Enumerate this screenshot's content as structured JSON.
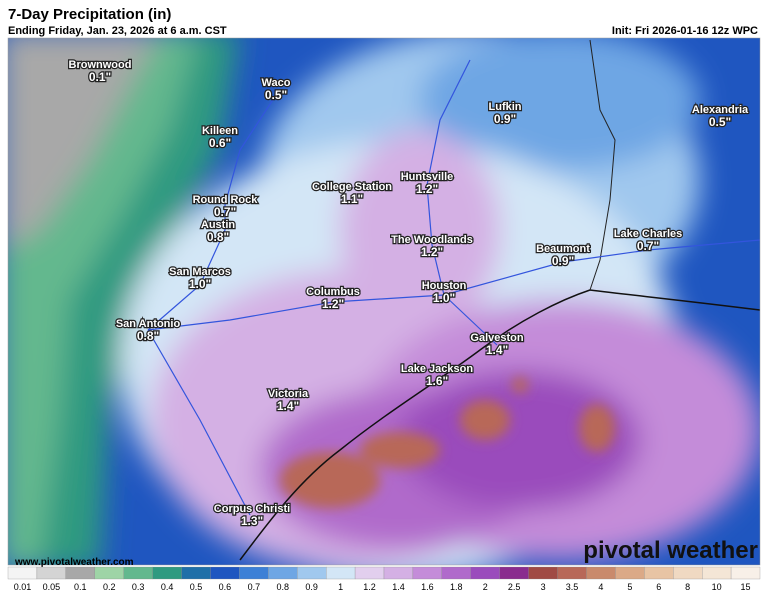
{
  "header": {
    "title": "7-Day Precipitation (in)",
    "subtitle": "Ending Friday, Jan. 23, 2026 at 6 a.m. CST",
    "init": "Init: Fri 2026-01-16 12z WPC"
  },
  "cities": [
    {
      "name": "Brownwood",
      "value": "0.1\""
    },
    {
      "name": "Waco",
      "value": "0.5\""
    },
    {
      "name": "Killeen",
      "value": "0.6\""
    },
    {
      "name": "Lufkin",
      "value": "0.9\""
    },
    {
      "name": "Alexandria",
      "value": "0.5\""
    },
    {
      "name": "College Station",
      "value": "1.1\""
    },
    {
      "name": "Huntsville",
      "value": "1.2\""
    },
    {
      "name": "Round Rock",
      "value": "0.7\""
    },
    {
      "name": "Austin",
      "value": "0.8\""
    },
    {
      "name": "The Woodlands",
      "value": "1.2\""
    },
    {
      "name": "Beaumont",
      "value": "0.9\""
    },
    {
      "name": "Lake Charles",
      "value": "0.7\""
    },
    {
      "name": "San Marcos",
      "value": "1.0\""
    },
    {
      "name": "Columbus",
      "value": "1.2\""
    },
    {
      "name": "Houston",
      "value": "1.0\""
    },
    {
      "name": "San Antonio",
      "value": "0.8\""
    },
    {
      "name": "Galveston",
      "value": "1.4\""
    },
    {
      "name": "Lake Jackson",
      "value": "1.6\""
    },
    {
      "name": "Victoria",
      "value": "1.4\""
    },
    {
      "name": "Corpus Christi",
      "value": "1.3\""
    }
  ],
  "watermark": {
    "url": "www.pivotalweather.com",
    "brand": "pivotal weather"
  },
  "legend": [
    {
      "label": "0.01",
      "color": "#f4f4f4"
    },
    {
      "label": "0.05",
      "color": "#d4d4d4"
    },
    {
      "label": "0.1",
      "color": "#a8a8a8"
    },
    {
      "label": "0.2",
      "color": "#9ed4a6"
    },
    {
      "label": "0.3",
      "color": "#63b88e"
    },
    {
      "label": "0.4",
      "color": "#2f9a80"
    },
    {
      "label": "0.5",
      "color": "#1f6fa8"
    },
    {
      "label": "0.6",
      "color": "#1f56c0"
    },
    {
      "label": "0.7",
      "color": "#3d80d6"
    },
    {
      "label": "0.8",
      "color": "#6ea6e4"
    },
    {
      "label": "0.9",
      "color": "#a0c8ee"
    },
    {
      "label": "1",
      "color": "#d3e6f6"
    },
    {
      "label": "1.2",
      "color": "#e2cfee"
    },
    {
      "label": "1.4",
      "color": "#d4b0e4"
    },
    {
      "label": "1.6",
      "color": "#c48cd9"
    },
    {
      "label": "1.8",
      "color": "#b06acb"
    },
    {
      "label": "2",
      "color": "#9a4cbc"
    },
    {
      "label": "2.5",
      "color": "#8a2c8e"
    },
    {
      "label": "3",
      "color": "#a04a44"
    },
    {
      "label": "3.5",
      "color": "#b86858"
    },
    {
      "label": "4",
      "color": "#c98a6c"
    },
    {
      "label": "5",
      "color": "#dba987"
    },
    {
      "label": "6",
      "color": "#e8c4a4"
    },
    {
      "label": "8",
      "color": "#f0d9c2"
    },
    {
      "label": "10",
      "color": "#f4e6d6"
    },
    {
      "label": "15",
      "color": "#f8f0e8"
    }
  ]
}
